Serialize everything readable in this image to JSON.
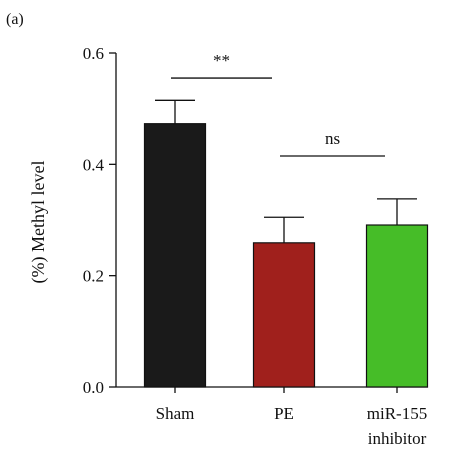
{
  "panel_label": "(a)",
  "chart_data": {
    "type": "bar",
    "ylabel": "(%) Methyl level",
    "ylim": [
      0,
      0.6
    ],
    "yticks": [
      0.0,
      0.2,
      0.4,
      0.6
    ],
    "ytick_labels": [
      "0.0",
      "0.2",
      "0.4",
      "0.6"
    ],
    "categories": [
      {
        "lines": [
          "Sham"
        ]
      },
      {
        "lines": [
          "PE"
        ]
      },
      {
        "lines": [
          "miR-155",
          "inhibitor"
        ]
      }
    ],
    "values": [
      0.473,
      0.259,
      0.291
    ],
    "errors": [
      0.042,
      0.046,
      0.047
    ],
    "colors": [
      "#1a1a1a",
      "#a0201c",
      "#46bd28"
    ],
    "significance": [
      {
        "from": 0,
        "to": 1,
        "label": "**",
        "y": 0.555
      },
      {
        "from": 1,
        "to": 2,
        "label": "ns",
        "y": 0.415
      }
    ]
  }
}
